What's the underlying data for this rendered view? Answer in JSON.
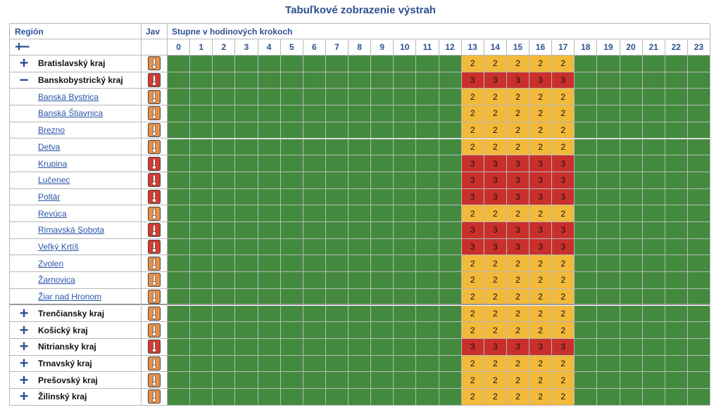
{
  "title": "Tabuľkové zobrazenie výstrah",
  "header": {
    "region": "Región",
    "jav": "Jav",
    "steps": "Stupne v hodinových krokoch",
    "toggle_all": "+−"
  },
  "hours": [
    0,
    1,
    2,
    3,
    4,
    5,
    6,
    7,
    8,
    9,
    10,
    11,
    12,
    13,
    14,
    15,
    16,
    17,
    18,
    19,
    20,
    21,
    22,
    23
  ],
  "rows": [
    {
      "name": "Bratislavský kraj",
      "kind": "region",
      "toggle": "+",
      "values": [
        null,
        null,
        null,
        null,
        null,
        null,
        null,
        null,
        null,
        null,
        null,
        null,
        null,
        2,
        2,
        2,
        2,
        2,
        null,
        null,
        null,
        null,
        null,
        null
      ]
    },
    {
      "name": "Banskobystrický kraj",
      "kind": "region",
      "toggle": "−",
      "values": [
        null,
        null,
        null,
        null,
        null,
        null,
        null,
        null,
        null,
        null,
        null,
        null,
        null,
        3,
        3,
        3,
        3,
        3,
        null,
        null,
        null,
        null,
        null,
        null
      ]
    },
    {
      "name": "Banská Bystrica",
      "kind": "district",
      "values": [
        null,
        null,
        null,
        null,
        null,
        null,
        null,
        null,
        null,
        null,
        null,
        null,
        null,
        2,
        2,
        2,
        2,
        2,
        null,
        null,
        null,
        null,
        null,
        null
      ]
    },
    {
      "name": "Banská Štiavnica",
      "kind": "district",
      "values": [
        null,
        null,
        null,
        null,
        null,
        null,
        null,
        null,
        null,
        null,
        null,
        null,
        null,
        2,
        2,
        2,
        2,
        2,
        null,
        null,
        null,
        null,
        null,
        null
      ]
    },
    {
      "name": "Brezno",
      "kind": "district",
      "values": [
        null,
        null,
        null,
        null,
        null,
        null,
        null,
        null,
        null,
        null,
        null,
        null,
        null,
        2,
        2,
        2,
        2,
        2,
        null,
        null,
        null,
        null,
        null,
        null
      ]
    },
    {
      "name": "Detva",
      "kind": "district",
      "values": [
        null,
        null,
        null,
        null,
        null,
        null,
        null,
        null,
        null,
        null,
        null,
        null,
        null,
        2,
        2,
        2,
        2,
        2,
        null,
        null,
        null,
        null,
        null,
        null
      ]
    },
    {
      "name": "Krupina",
      "kind": "district",
      "values": [
        null,
        null,
        null,
        null,
        null,
        null,
        null,
        null,
        null,
        null,
        null,
        null,
        null,
        3,
        3,
        3,
        3,
        3,
        null,
        null,
        null,
        null,
        null,
        null
      ]
    },
    {
      "name": "Lučenec",
      "kind": "district",
      "values": [
        null,
        null,
        null,
        null,
        null,
        null,
        null,
        null,
        null,
        null,
        null,
        null,
        null,
        3,
        3,
        3,
        3,
        3,
        null,
        null,
        null,
        null,
        null,
        null
      ]
    },
    {
      "name": "Poltár",
      "kind": "district",
      "values": [
        null,
        null,
        null,
        null,
        null,
        null,
        null,
        null,
        null,
        null,
        null,
        null,
        null,
        3,
        3,
        3,
        3,
        3,
        null,
        null,
        null,
        null,
        null,
        null
      ]
    },
    {
      "name": "Revúca",
      "kind": "district",
      "values": [
        null,
        null,
        null,
        null,
        null,
        null,
        null,
        null,
        null,
        null,
        null,
        null,
        null,
        2,
        2,
        2,
        2,
        2,
        null,
        null,
        null,
        null,
        null,
        null
      ]
    },
    {
      "name": "Rimavská Sobota",
      "kind": "district",
      "values": [
        null,
        null,
        null,
        null,
        null,
        null,
        null,
        null,
        null,
        null,
        null,
        null,
        null,
        3,
        3,
        3,
        3,
        3,
        null,
        null,
        null,
        null,
        null,
        null
      ]
    },
    {
      "name": "Veľký Krtíš",
      "kind": "district",
      "values": [
        null,
        null,
        null,
        null,
        null,
        null,
        null,
        null,
        null,
        null,
        null,
        null,
        null,
        3,
        3,
        3,
        3,
        3,
        null,
        null,
        null,
        null,
        null,
        null
      ]
    },
    {
      "name": "Zvolen",
      "kind": "district",
      "values": [
        null,
        null,
        null,
        null,
        null,
        null,
        null,
        null,
        null,
        null,
        null,
        null,
        null,
        2,
        2,
        2,
        2,
        2,
        null,
        null,
        null,
        null,
        null,
        null
      ]
    },
    {
      "name": "Žarnovica",
      "kind": "district",
      "values": [
        null,
        null,
        null,
        null,
        null,
        null,
        null,
        null,
        null,
        null,
        null,
        null,
        null,
        2,
        2,
        2,
        2,
        2,
        null,
        null,
        null,
        null,
        null,
        null
      ]
    },
    {
      "name": "Žiar nad Hronom",
      "kind": "district",
      "values": [
        null,
        null,
        null,
        null,
        null,
        null,
        null,
        null,
        null,
        null,
        null,
        null,
        null,
        2,
        2,
        2,
        2,
        2,
        null,
        null,
        null,
        null,
        null,
        null
      ]
    },
    {
      "name": "Trenčiansky kraj",
      "kind": "region",
      "toggle": "+",
      "values": [
        null,
        null,
        null,
        null,
        null,
        null,
        null,
        null,
        null,
        null,
        null,
        null,
        null,
        2,
        2,
        2,
        2,
        2,
        null,
        null,
        null,
        null,
        null,
        null
      ]
    },
    {
      "name": "Košický kraj",
      "kind": "region",
      "toggle": "+",
      "values": [
        null,
        null,
        null,
        null,
        null,
        null,
        null,
        null,
        null,
        null,
        null,
        null,
        null,
        2,
        2,
        2,
        2,
        2,
        null,
        null,
        null,
        null,
        null,
        null
      ]
    },
    {
      "name": "Nitriansky kraj",
      "kind": "region",
      "toggle": "+",
      "values": [
        null,
        null,
        null,
        null,
        null,
        null,
        null,
        null,
        null,
        null,
        null,
        null,
        null,
        3,
        3,
        3,
        3,
        3,
        null,
        null,
        null,
        null,
        null,
        null
      ]
    },
    {
      "name": "Trnavský kraj",
      "kind": "region",
      "toggle": "+",
      "values": [
        null,
        null,
        null,
        null,
        null,
        null,
        null,
        null,
        null,
        null,
        null,
        null,
        null,
        2,
        2,
        2,
        2,
        2,
        null,
        null,
        null,
        null,
        null,
        null
      ]
    },
    {
      "name": "Prešovský kraj",
      "kind": "region",
      "toggle": "+",
      "values": [
        null,
        null,
        null,
        null,
        null,
        null,
        null,
        null,
        null,
        null,
        null,
        null,
        null,
        2,
        2,
        2,
        2,
        2,
        null,
        null,
        null,
        null,
        null,
        null
      ]
    },
    {
      "name": "Žilinský kraj",
      "kind": "region",
      "toggle": "+",
      "values": [
        null,
        null,
        null,
        null,
        null,
        null,
        null,
        null,
        null,
        null,
        null,
        null,
        null,
        2,
        2,
        2,
        2,
        2,
        null,
        null,
        null,
        null,
        null,
        null
      ]
    }
  ]
}
